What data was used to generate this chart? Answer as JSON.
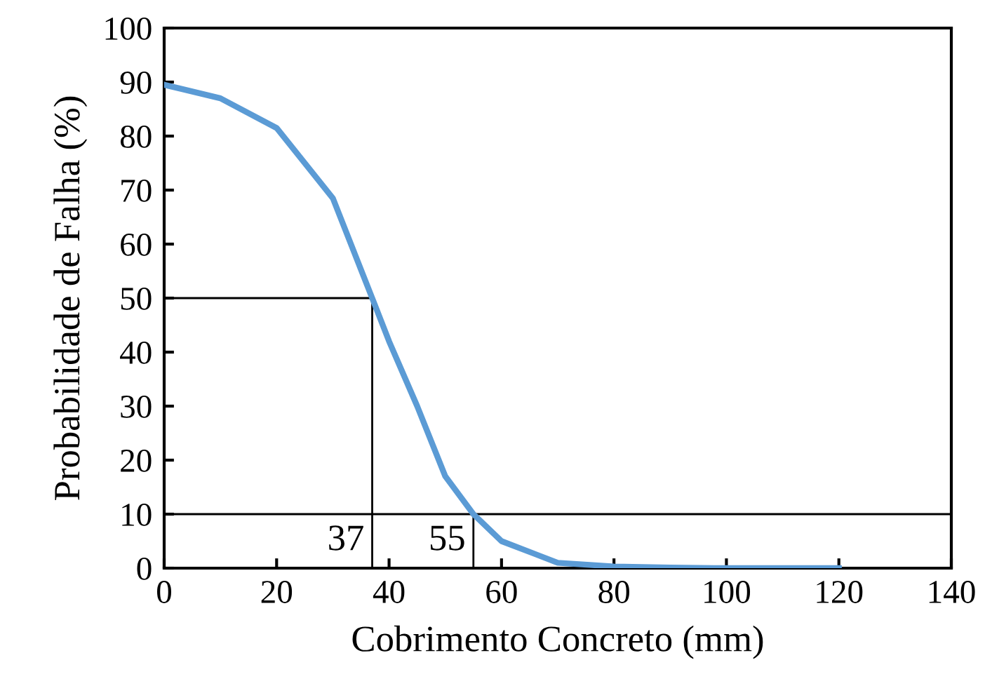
{
  "chart_data": {
    "type": "line",
    "xlabel": "Cobrimento Concreto (mm)",
    "ylabel": "Probabilidade de Falha (%)",
    "xlim": [
      0,
      140
    ],
    "xticks": [
      0,
      20,
      40,
      60,
      80,
      100,
      120,
      140
    ],
    "ylim": [
      0,
      100
    ],
    "yticks": [
      0,
      10,
      20,
      30,
      40,
      50,
      60,
      70,
      80,
      90,
      100
    ],
    "grid": false,
    "marker": "none",
    "line_style": "solid",
    "series": [
      {
        "color": "#5b9bd5",
        "x": [
          0,
          10,
          20,
          30,
          37,
          40,
          45,
          50,
          55,
          60,
          70,
          80,
          90,
          100,
          110,
          120
        ],
        "values": [
          89.5,
          87,
          81.5,
          68.5,
          50,
          42,
          30,
          17,
          10,
          5,
          1,
          0.3,
          0.1,
          0,
          0,
          0
        ]
      },
      {
        "color": "#000000",
        "x": [
          0,
          37,
          37
        ],
        "values": [
          50,
          50,
          0
        ]
      },
      {
        "color": "#000000",
        "x": [
          55,
          55
        ],
        "values": [
          10,
          0
        ]
      }
    ],
    "ref_lines": [
      {
        "axis": "y",
        "value": 10,
        "color": "#000000"
      }
    ],
    "annotations": [
      {
        "text": "37",
        "x": 37,
        "y": 5
      },
      {
        "text": "55",
        "x": 55,
        "y": 5
      }
    ]
  }
}
